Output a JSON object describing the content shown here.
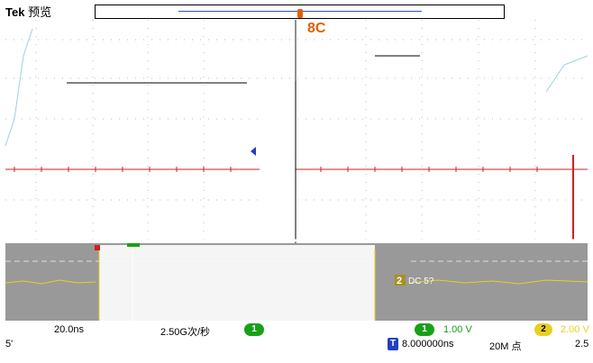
{
  "header": {
    "brand": "Tek",
    "mode": "预览"
  },
  "overlay": {
    "trig_letters": "8C"
  },
  "ch2_marker": "2",
  "ch2_label": "DC 5?",
  "status_bar": {
    "timebase": "20.0ns",
    "sample_rate": "2.50G次/秒",
    "ch1_badge": "1",
    "ch1_scale": "1.00 V",
    "ch2_badge": "2",
    "ch2_scale": "2.00 V",
    "trigger_icon": "T",
    "trigger_position": "8.000000ns",
    "record_length": "20M 点",
    "right_value": "2.5",
    "left_fragment": "5'"
  },
  "colors": {
    "ch1": "#19a019",
    "ch2": "#e8d020",
    "cursor": "#d02020",
    "trigger": "#e06000",
    "marker_blue": "#2040c0"
  }
}
